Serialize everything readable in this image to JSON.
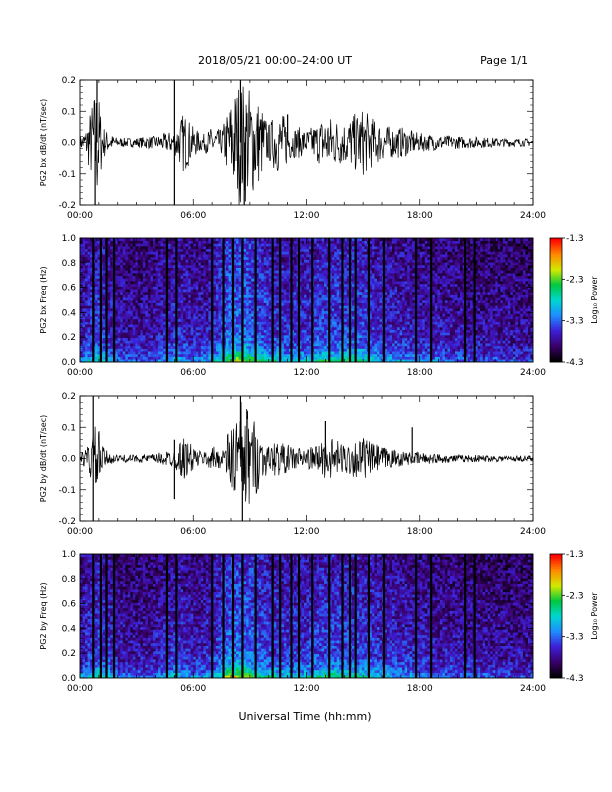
{
  "header": {
    "title": "2018/05/21   00:00–24:00 UT",
    "page": "Page 1/1"
  },
  "footer": {
    "xlabel": "Universal Time (hh:mm)"
  },
  "colorbar": {
    "label": "Log₁₀ Power",
    "ticks": [
      "-1.3",
      "-2.3",
      "-3.3",
      "-4.3"
    ],
    "colors": [
      "#000000",
      "#3a006a",
      "#3d1fd6",
      "#1e8cff",
      "#00d7d2",
      "#00c840",
      "#d2ea00",
      "#ff8a00",
      "#ff0000"
    ]
  },
  "chart_data": [
    {
      "type": "line",
      "ylabel": "PG2 bx dB/dt (nT/sec)",
      "xlim": [
        0,
        24
      ],
      "ylim": [
        -0.2,
        0.2
      ],
      "xticks": [
        "00:00",
        "06:00",
        "12:00",
        "18:00",
        "24:00"
      ],
      "yticks": [
        "-0.2",
        "-0.1",
        "0.0",
        "0.1",
        "0.2"
      ],
      "envelope": {
        "hours": [
          0,
          0.3,
          0.6,
          0.9,
          1.2,
          1.5,
          2,
          2.5,
          3,
          3.5,
          4,
          4.5,
          5,
          5.5,
          6,
          6.5,
          7,
          7.5,
          7.8,
          8.1,
          8.4,
          8.7,
          9,
          9.3,
          9.6,
          10,
          10.4,
          10.8,
          11.2,
          11.6,
          12,
          12.5,
          13,
          13.5,
          14,
          14.5,
          15,
          15.5,
          16,
          16.5,
          17,
          17.5,
          18,
          19,
          20,
          21,
          22,
          23,
          24
        ],
        "amplitude": [
          0.02,
          0.04,
          0.12,
          0.2,
          0.06,
          0.03,
          0.015,
          0.015,
          0.015,
          0.02,
          0.02,
          0.03,
          0.04,
          0.1,
          0.05,
          0.025,
          0.05,
          0.04,
          0.1,
          0.16,
          0.2,
          0.2,
          0.18,
          0.16,
          0.12,
          0.06,
          0.1,
          0.09,
          0.05,
          0.05,
          0.04,
          0.06,
          0.09,
          0.08,
          0.07,
          0.09,
          0.11,
          0.08,
          0.06,
          0.05,
          0.05,
          0.04,
          0.03,
          0.025,
          0.02,
          0.018,
          0.015,
          0.013,
          0.012
        ]
      },
      "spikes": [
        {
          "hour": 0.9,
          "value": 0.2
        },
        {
          "hour": 0.8,
          "value": -0.2
        },
        {
          "hour": 5.0,
          "value": 0.2
        },
        {
          "hour": 5.0,
          "value": -0.2
        },
        {
          "hour": 8.5,
          "value": 0.2
        },
        {
          "hour": 8.7,
          "value": -0.2
        },
        {
          "hour": 11.0,
          "value": 0.09
        }
      ]
    },
    {
      "type": "heatmap",
      "ylabel": "PG2 bx Freq (Hz)",
      "xlim": [
        0,
        24
      ],
      "ylim": [
        0,
        1.0
      ],
      "zlim": [
        -4.3,
        -1.3
      ],
      "xticks": [
        "00:00",
        "06:00",
        "12:00",
        "18:00",
        "24:00"
      ],
      "yticks": [
        "0.0",
        "0.2",
        "0.4",
        "0.6",
        "0.8",
        "1.0"
      ],
      "activity_hours": [
        0,
        1,
        2,
        3,
        4,
        5,
        6,
        7,
        8,
        9,
        10,
        11,
        12,
        13,
        14,
        15,
        16,
        17,
        18,
        19,
        20,
        21,
        22,
        23,
        24
      ],
      "activity_level": [
        0.35,
        0.6,
        0.3,
        0.25,
        0.3,
        0.45,
        0.35,
        0.4,
        0.85,
        0.75,
        0.55,
        0.5,
        0.5,
        0.6,
        0.65,
        0.6,
        0.45,
        0.4,
        0.35,
        0.3,
        0.28,
        0.25,
        0.22,
        0.2,
        0.2
      ],
      "gap_hours": [
        0.7,
        1.1,
        1.4,
        1.8,
        4.6,
        5.1,
        7.0,
        7.6,
        8.1,
        8.6,
        9.3,
        10.2,
        10.6,
        11.2,
        11.6,
        12.3,
        13.2,
        13.9,
        14.3,
        14.6,
        15.3,
        16.1,
        17.8,
        18.6,
        20.4,
        20.9
      ]
    },
    {
      "type": "line",
      "ylabel": "PG2 by dB/dt (nT/sec)",
      "xlim": [
        0,
        24
      ],
      "ylim": [
        -0.2,
        0.2
      ],
      "xticks": [
        "00:00",
        "06:00",
        "12:00",
        "18:00",
        "24:00"
      ],
      "yticks": [
        "-0.2",
        "-0.1",
        "0.0",
        "0.1",
        "0.2"
      ],
      "envelope": {
        "hours": [
          0,
          0.3,
          0.6,
          0.9,
          1.2,
          1.5,
          2,
          2.5,
          3,
          3.5,
          4,
          4.5,
          5,
          5.5,
          6,
          6.5,
          7,
          7.5,
          7.8,
          8.1,
          8.4,
          8.7,
          9,
          9.3,
          9.6,
          10,
          10.4,
          10.8,
          11.2,
          11.6,
          12,
          12.5,
          13,
          13.5,
          14,
          14.5,
          15,
          15.5,
          16,
          16.5,
          17,
          17.5,
          18,
          19,
          20,
          21,
          22,
          23,
          24
        ],
        "amplitude": [
          0.015,
          0.03,
          0.08,
          0.12,
          0.04,
          0.02,
          0.012,
          0.012,
          0.012,
          0.015,
          0.015,
          0.025,
          0.03,
          0.07,
          0.04,
          0.02,
          0.04,
          0.03,
          0.08,
          0.13,
          0.18,
          0.2,
          0.15,
          0.12,
          0.08,
          0.04,
          0.06,
          0.05,
          0.04,
          0.04,
          0.03,
          0.045,
          0.07,
          0.06,
          0.05,
          0.06,
          0.07,
          0.05,
          0.04,
          0.03,
          0.025,
          0.02,
          0.02,
          0.015,
          0.012,
          0.012,
          0.01,
          0.01,
          0.01
        ]
      },
      "spikes": [
        {
          "hour": 0.7,
          "value": 0.2
        },
        {
          "hour": 0.7,
          "value": -0.2
        },
        {
          "hour": 5.0,
          "value": 0.06
        },
        {
          "hour": 5.0,
          "value": -0.13
        },
        {
          "hour": 8.5,
          "value": 0.2
        },
        {
          "hour": 8.6,
          "value": -0.2
        },
        {
          "hour": 13.0,
          "value": 0.12
        },
        {
          "hour": 17.6,
          "value": 0.1
        }
      ]
    },
    {
      "type": "heatmap",
      "ylabel": "PG2 by Freq (Hz)",
      "xlim": [
        0,
        24
      ],
      "ylim": [
        0,
        1.0
      ],
      "zlim": [
        -4.3,
        -1.3
      ],
      "xticks": [
        "00:00",
        "06:00",
        "12:00",
        "18:00",
        "24:00"
      ],
      "yticks": [
        "0.0",
        "0.2",
        "0.4",
        "0.6",
        "0.8",
        "1.0"
      ],
      "activity_hours": [
        0,
        1,
        2,
        3,
        4,
        5,
        6,
        7,
        8,
        9,
        10,
        11,
        12,
        13,
        14,
        15,
        16,
        17,
        18,
        19,
        20,
        21,
        22,
        23,
        24
      ],
      "activity_level": [
        0.35,
        0.6,
        0.3,
        0.25,
        0.3,
        0.45,
        0.35,
        0.4,
        0.85,
        0.75,
        0.55,
        0.5,
        0.5,
        0.6,
        0.6,
        0.55,
        0.45,
        0.4,
        0.35,
        0.3,
        0.28,
        0.25,
        0.22,
        0.2,
        0.2
      ],
      "gap_hours": [
        0.7,
        1.1,
        1.4,
        1.8,
        4.6,
        5.1,
        7.0,
        7.6,
        8.1,
        8.6,
        9.3,
        10.2,
        10.6,
        11.2,
        11.6,
        12.3,
        13.2,
        13.9,
        14.3,
        14.6,
        15.3,
        16.1,
        17.8,
        18.6,
        20.4,
        20.9
      ]
    }
  ]
}
